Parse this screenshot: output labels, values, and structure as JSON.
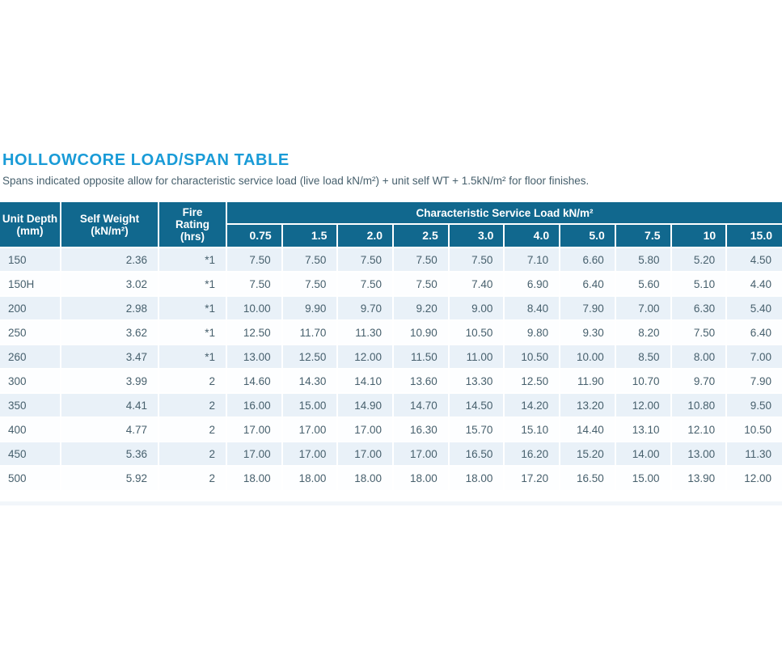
{
  "page": {
    "title": "HOLLOWCORE LOAD/SPAN TABLE",
    "subtitle": "Spans indicated opposite allow for characteristic service load (live load kN/m²) + unit self WT + 1.5kN/m² for floor finishes."
  },
  "colors": {
    "title_accent": "#199BD7",
    "header_bg": "#11688E",
    "header_text": "#FFFFFF",
    "row_alt_bg": "#E9F1F8",
    "row_bg": "#FDFEFF",
    "body_text": "#47606D"
  },
  "table": {
    "columns": {
      "unit_depth": {
        "line1": "Unit Depth",
        "line2": "(mm)"
      },
      "self_weight": {
        "line1": "Self Weight",
        "line2": "(kN/m²)"
      },
      "fire_rating": {
        "line1": "Fire",
        "line2": "Rating",
        "line3": "(hrs)"
      }
    },
    "group_header": "Characteristic Service Load kN/m²",
    "load_columns": [
      "0.75",
      "1.5",
      "2.0",
      "2.5",
      "3.0",
      "4.0",
      "5.0",
      "7.5",
      "10",
      "15.0"
    ],
    "rows": [
      {
        "depth": "150",
        "self_weight": "2.36",
        "fire_rating": "*1",
        "loads": [
          "7.50",
          "7.50",
          "7.50",
          "7.50",
          "7.50",
          "7.10",
          "6.60",
          "5.80",
          "5.20",
          "4.50"
        ]
      },
      {
        "depth": "150H",
        "self_weight": "3.02",
        "fire_rating": "*1",
        "loads": [
          "7.50",
          "7.50",
          "7.50",
          "7.50",
          "7.40",
          "6.90",
          "6.40",
          "5.60",
          "5.10",
          "4.40"
        ]
      },
      {
        "depth": "200",
        "self_weight": "2.98",
        "fire_rating": "*1",
        "loads": [
          "10.00",
          "9.90",
          "9.70",
          "9.20",
          "9.00",
          "8.40",
          "7.90",
          "7.00",
          "6.30",
          "5.40"
        ]
      },
      {
        "depth": "250",
        "self_weight": "3.62",
        "fire_rating": "*1",
        "loads": [
          "12.50",
          "11.70",
          "11.30",
          "10.90",
          "10.50",
          "9.80",
          "9.30",
          "8.20",
          "7.50",
          "6.40"
        ]
      },
      {
        "depth": "260",
        "self_weight": "3.47",
        "fire_rating": "*1",
        "loads": [
          "13.00",
          "12.50",
          "12.00",
          "11.50",
          "11.00",
          "10.50",
          "10.00",
          "8.50",
          "8.00",
          "7.00"
        ]
      },
      {
        "depth": "300",
        "self_weight": "3.99",
        "fire_rating": "2",
        "loads": [
          "14.60",
          "14.30",
          "14.10",
          "13.60",
          "13.30",
          "12.50",
          "11.90",
          "10.70",
          "9.70",
          "7.90"
        ]
      },
      {
        "depth": "350",
        "self_weight": "4.41",
        "fire_rating": "2",
        "loads": [
          "16.00",
          "15.00",
          "14.90",
          "14.70",
          "14.50",
          "14.20",
          "13.20",
          "12.00",
          "10.80",
          "9.50"
        ]
      },
      {
        "depth": "400",
        "self_weight": "4.77",
        "fire_rating": "2",
        "loads": [
          "17.00",
          "17.00",
          "17.00",
          "16.30",
          "15.70",
          "15.10",
          "14.40",
          "13.10",
          "12.10",
          "10.50"
        ]
      },
      {
        "depth": "450",
        "self_weight": "5.36",
        "fire_rating": "2",
        "loads": [
          "17.00",
          "17.00",
          "17.00",
          "17.00",
          "16.50",
          "16.20",
          "15.20",
          "14.00",
          "13.00",
          "11.30"
        ]
      },
      {
        "depth": "500",
        "self_weight": "5.92",
        "fire_rating": "2",
        "loads": [
          "18.00",
          "18.00",
          "18.00",
          "18.00",
          "18.00",
          "17.20",
          "16.50",
          "15.00",
          "13.90",
          "12.00"
        ]
      }
    ]
  }
}
